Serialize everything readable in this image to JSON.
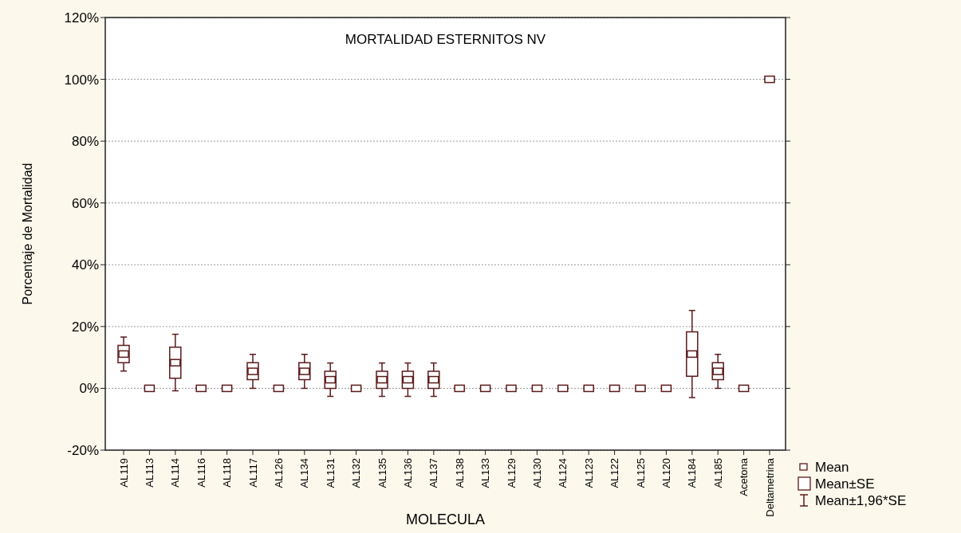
{
  "chart_data": {
    "type": "box",
    "title": "MORTALIDAD ESTERNITOS NV",
    "xlabel": "MOLECULA",
    "ylabel": "Porcentaje de Mortalidad",
    "color": "#5c1a1a",
    "categories": [
      "AL119",
      "AL113",
      "AL114",
      "AL116",
      "AL118",
      "AL117",
      "AL126",
      "AL134",
      "AL131",
      "AL132",
      "AL135",
      "AL136",
      "AL137",
      "AL138",
      "AL133",
      "AL129",
      "AL130",
      "AL124",
      "AL123",
      "AL122",
      "AL125",
      "AL120",
      "AL184",
      "AL185",
      "Acetona",
      "Deltametrina"
    ],
    "boxes": [
      {
        "low": 5.6,
        "q1": 8.3,
        "median": 11.1,
        "q3": 13.9,
        "high": 16.6,
        "mean": 11.1
      },
      {
        "low": 0,
        "q1": 0,
        "median": 0,
        "q3": 0,
        "high": 0,
        "mean": 0
      },
      {
        "low": -0.8,
        "q1": 3.3,
        "median": 8.3,
        "q3": 13.3,
        "high": 17.5,
        "mean": 8.3
      },
      {
        "low": 0,
        "q1": 0,
        "median": 0,
        "q3": 0,
        "high": 0,
        "mean": 0
      },
      {
        "low": 0,
        "q1": 0,
        "median": 0,
        "q3": 0,
        "high": 0,
        "mean": 0
      },
      {
        "low": 0,
        "q1": 2.8,
        "median": 5.5,
        "q3": 8.3,
        "high": 11,
        "mean": 5.5
      },
      {
        "low": 0,
        "q1": 0,
        "median": 0,
        "q3": 0,
        "high": 0,
        "mean": 0
      },
      {
        "low": 0,
        "q1": 2.8,
        "median": 5.5,
        "q3": 8.3,
        "high": 11,
        "mean": 5.5
      },
      {
        "low": -2.6,
        "q1": 0,
        "median": 2.8,
        "q3": 5.5,
        "high": 8.2,
        "mean": 2.8
      },
      {
        "low": 0,
        "q1": 0,
        "median": 0,
        "q3": 0,
        "high": 0,
        "mean": 0
      },
      {
        "low": -2.6,
        "q1": 0,
        "median": 2.8,
        "q3": 5.5,
        "high": 8.2,
        "mean": 2.8
      },
      {
        "low": -2.6,
        "q1": 0,
        "median": 2.8,
        "q3": 5.5,
        "high": 8.2,
        "mean": 2.8
      },
      {
        "low": -2.6,
        "q1": 0,
        "median": 2.8,
        "q3": 5.5,
        "high": 8.2,
        "mean": 2.8
      },
      {
        "low": 0,
        "q1": 0,
        "median": 0,
        "q3": 0,
        "high": 0,
        "mean": 0
      },
      {
        "low": 0,
        "q1": 0,
        "median": 0,
        "q3": 0,
        "high": 0,
        "mean": 0
      },
      {
        "low": 0,
        "q1": 0,
        "median": 0,
        "q3": 0,
        "high": 0,
        "mean": 0
      },
      {
        "low": 0,
        "q1": 0,
        "median": 0,
        "q3": 0,
        "high": 0,
        "mean": 0
      },
      {
        "low": 0,
        "q1": 0,
        "median": 0,
        "q3": 0,
        "high": 0,
        "mean": 0
      },
      {
        "low": 0,
        "q1": 0,
        "median": 0,
        "q3": 0,
        "high": 0,
        "mean": 0
      },
      {
        "low": 0,
        "q1": 0,
        "median": 0,
        "q3": 0,
        "high": 0,
        "mean": 0
      },
      {
        "low": 0,
        "q1": 0,
        "median": 0,
        "q3": 0,
        "high": 0,
        "mean": 0
      },
      {
        "low": 0,
        "q1": 0,
        "median": 0,
        "q3": 0,
        "high": 0,
        "mean": 0
      },
      {
        "low": -3,
        "q1": 3.9,
        "median": 11.1,
        "q3": 18.3,
        "high": 25.2,
        "mean": 11.1
      },
      {
        "low": 0,
        "q1": 2.8,
        "median": 5.5,
        "q3": 8.3,
        "high": 11,
        "mean": 5.5
      },
      {
        "low": 0,
        "q1": 0,
        "median": 0,
        "q3": 0,
        "high": 0,
        "mean": 0
      },
      {
        "low": 100,
        "q1": 100,
        "median": 100,
        "q3": 100,
        "high": 100,
        "mean": 100
      }
    ],
    "ylim": [
      -20,
      120
    ],
    "yticks": [
      {
        "value": -20,
        "label": "-20%"
      },
      {
        "value": 0,
        "label": "0%"
      },
      {
        "value": 20,
        "label": "20%"
      },
      {
        "value": 40,
        "label": "40%"
      },
      {
        "value": 60,
        "label": "60%"
      },
      {
        "value": 80,
        "label": "80%"
      },
      {
        "value": 100,
        "label": "100%"
      },
      {
        "value": 120,
        "label": "120%"
      }
    ],
    "grid": "y",
    "annotations": [
      "Mean",
      "Mean±SE",
      "Mean±1,96*SE"
    ]
  }
}
